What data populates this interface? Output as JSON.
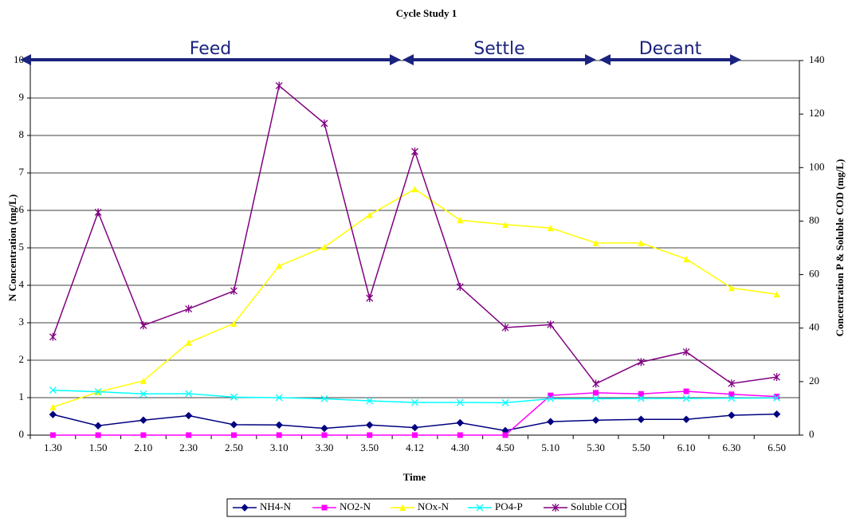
{
  "chart_data": {
    "type": "line",
    "title": "Cycle Study 1",
    "x_label": "Time",
    "y_label": "N Concentration (mg/L)",
    "y2_label": "Concentration P & Soluble COD (mg/L)",
    "categories": [
      "1.30",
      "1.50",
      "2.10",
      "2.30",
      "2.50",
      "3.10",
      "3.30",
      "3.50",
      "4.12",
      "4.30",
      "4.50",
      "5.10",
      "5.30",
      "5.50",
      "6.10",
      "6.30",
      "6.50"
    ],
    "series": [
      {
        "name": "NH4-N",
        "color": "#000080",
        "marker": "diamond",
        "values": [
          0.55,
          0.25,
          0.4,
          0.52,
          0.28,
          0.27,
          0.18,
          0.27,
          0.2,
          0.33,
          0.12,
          0.36,
          0.4,
          0.42,
          0.42,
          0.53,
          0.56
        ]
      },
      {
        "name": "NO2-N",
        "color": "#ff00ff",
        "marker": "square",
        "values": [
          0,
          0,
          0,
          0,
          0,
          0,
          0,
          0,
          0,
          0,
          0,
          1.06,
          1.13,
          1.1,
          1.17,
          1.09,
          1.03
        ]
      },
      {
        "name": "NOx-N",
        "color": "#ffff00",
        "marker": "triangle",
        "values": [
          0.75,
          1.15,
          1.45,
          2.47,
          2.98,
          4.52,
          5.02,
          5.88,
          6.57,
          5.74,
          5.62,
          5.53,
          5.13,
          5.13,
          4.7,
          3.93,
          3.76
        ]
      },
      {
        "name": "PO4-P",
        "color": "#00ffff",
        "marker": "x",
        "axis": "y2",
        "values": [
          16.8,
          16.2,
          15.4,
          15.5,
          14.2,
          14.0,
          13.6,
          12.8,
          12.2,
          12.2,
          12.1,
          13.6,
          13.6,
          13.7,
          13.7,
          13.8,
          13.9
        ]
      },
      {
        "name": "Soluble COD",
        "color": "#800080",
        "marker": "asterisk",
        "axis": "y2",
        "values": [
          36.7,
          83.3,
          41,
          47.2,
          53.9,
          130.6,
          116.5,
          51.2,
          106,
          55.4,
          40.2,
          41.3,
          19.2,
          27.3,
          31.1,
          19.3,
          21.7
        ]
      }
    ],
    "ylim": [
      0,
      10
    ],
    "yticks": [
      0,
      1,
      2,
      3,
      4,
      5,
      6,
      7,
      8,
      9,
      10
    ],
    "y2lim": [
      0,
      140
    ],
    "y2ticks": [
      0,
      20,
      40,
      60,
      80,
      100,
      120,
      140
    ],
    "grid": true,
    "legend": "bottom",
    "annotations": [
      "Feed",
      "Settle",
      "Decant"
    ]
  }
}
